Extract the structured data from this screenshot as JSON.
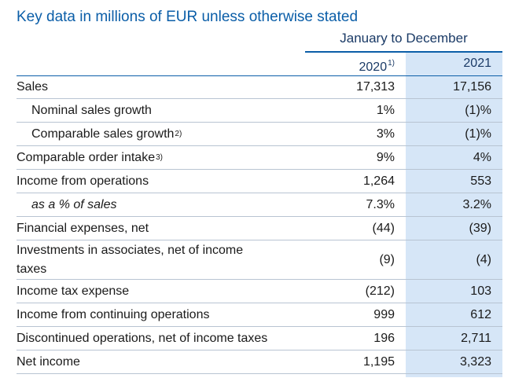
{
  "title": "Key data in millions of EUR unless otherwise stated",
  "header": {
    "period": "January to December",
    "col1": "2020",
    "col1_note": "1)",
    "col2": "2021"
  },
  "rows": [
    {
      "label": "Sales",
      "note": "",
      "v2020": "17,313",
      "v2021": "17,156"
    },
    {
      "label": "Nominal sales growth",
      "note": "",
      "v2020": "1%",
      "v2021": "(1)%"
    },
    {
      "label": "Comparable sales growth",
      "note": "2)",
      "v2020": "3%",
      "v2021": "(1)%"
    },
    {
      "label": "Comparable order intake",
      "note": "3)",
      "v2020": "9%",
      "v2021": "4%"
    },
    {
      "label": "Income from operations",
      "note": "",
      "v2020": "1,264",
      "v2021": "553"
    },
    {
      "label": "as a % of sales",
      "note": "",
      "v2020": "7.3%",
      "v2021": "3.2%"
    },
    {
      "label": "Financial expenses, net",
      "note": "",
      "v2020": "(44)",
      "v2021": "(39)"
    },
    {
      "label": "Investments in associates, net of income taxes",
      "note": "",
      "v2020": "(9)",
      "v2021": "(4)"
    },
    {
      "label": "Income tax expense",
      "note": "",
      "v2020": "(212)",
      "v2021": "103"
    },
    {
      "label": "Income from continuing operations",
      "note": "",
      "v2020": "999",
      "v2021": "612"
    },
    {
      "label": "Discontinued operations, net of income taxes",
      "note": "",
      "v2020": "196",
      "v2021": "2,711"
    },
    {
      "label": "Net income",
      "note": "",
      "v2020": "1,195",
      "v2021": "3,323"
    }
  ]
}
